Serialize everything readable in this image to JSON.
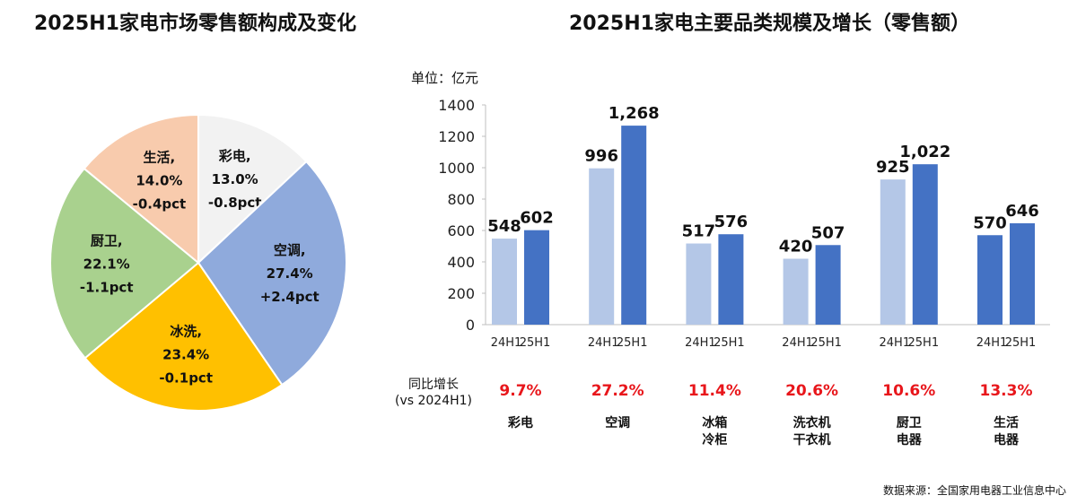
{
  "chart_data": [
    {
      "type": "pie",
      "title": "2025H1家电市场零售额构成及变化",
      "slices": [
        {
          "label": "彩电",
          "value": 13.0,
          "value_label": "13.0%",
          "change": "-0.8pct",
          "color": "#f2f2f2"
        },
        {
          "label": "空调",
          "value": 27.4,
          "value_label": "27.4%",
          "change": "+2.4pct",
          "color": "#8faadc"
        },
        {
          "label": "冰洗",
          "value": 23.4,
          "value_label": "23.4%",
          "change": "-0.1pct",
          "color": "#ffc000"
        },
        {
          "label": "厨卫",
          "value": 22.1,
          "value_label": "22.1%",
          "change": "-1.1pct",
          "color": "#a9d18e"
        },
        {
          "label": "生活",
          "value": 14.0,
          "value_label": "14.0%",
          "change": "-0.4pct",
          "color": "#f8cbad"
        }
      ]
    },
    {
      "type": "bar",
      "title": "2025H1家电主要品类规模及增长（零售额）",
      "unit_label": "单位：亿元",
      "ylim": [
        0,
        1400
      ],
      "yticks": [
        "0",
        "200",
        "400",
        "600",
        "800",
        "1000",
        "1200",
        "1400"
      ],
      "grid": false,
      "growth_row_label": [
        "同比增长",
        "(vs 2024H1)"
      ],
      "groups": [
        {
          "category": [
            "彩电"
          ],
          "bars": [
            {
              "x": "24H1",
              "value": 548,
              "label": "548",
              "color": "#b4c7e7"
            },
            {
              "x": "25H1",
              "value": 602,
              "label": "602",
              "color": "#4472c4"
            }
          ],
          "growth": "9.7%"
        },
        {
          "category": [
            "空调"
          ],
          "bars": [
            {
              "x": "24H1",
              "value": 996,
              "label": "996",
              "color": "#b4c7e7"
            },
            {
              "x": "25H1",
              "value": 1268,
              "label": "1,268",
              "color": "#4472c4"
            }
          ],
          "growth": "27.2%"
        },
        {
          "category": [
            "冰箱",
            "冷柜"
          ],
          "bars": [
            {
              "x": "24H1",
              "value": 517,
              "label": "517",
              "color": "#b4c7e7"
            },
            {
              "x": "25H1",
              "value": 576,
              "label": "576",
              "color": "#4472c4"
            }
          ],
          "growth": "11.4%"
        },
        {
          "category": [
            "洗衣机",
            "干衣机"
          ],
          "bars": [
            {
              "x": "24H1",
              "value": 420,
              "label": "420",
              "color": "#b4c7e7"
            },
            {
              "x": "25H1",
              "value": 507,
              "label": "507",
              "color": "#4472c4"
            }
          ],
          "growth": "20.6%"
        },
        {
          "category": [
            "厨卫",
            "电器"
          ],
          "bars": [
            {
              "x": "24H1",
              "value": 925,
              "label": "925",
              "color": "#b4c7e7"
            },
            {
              "x": "25H1",
              "value": 1022,
              "label": "1,022",
              "color": "#4472c4"
            }
          ],
          "growth": "10.6%"
        },
        {
          "category": [
            "生活",
            "电器"
          ],
          "bars": [
            {
              "x": "24H1",
              "value": 570,
              "label": "570",
              "color": "#4472c4"
            },
            {
              "x": "25H1",
              "value": 646,
              "label": "646",
              "color": "#4472c4"
            }
          ],
          "growth": "13.3%"
        }
      ]
    }
  ],
  "source": "数据来源：全国家用电器工业信息中心"
}
